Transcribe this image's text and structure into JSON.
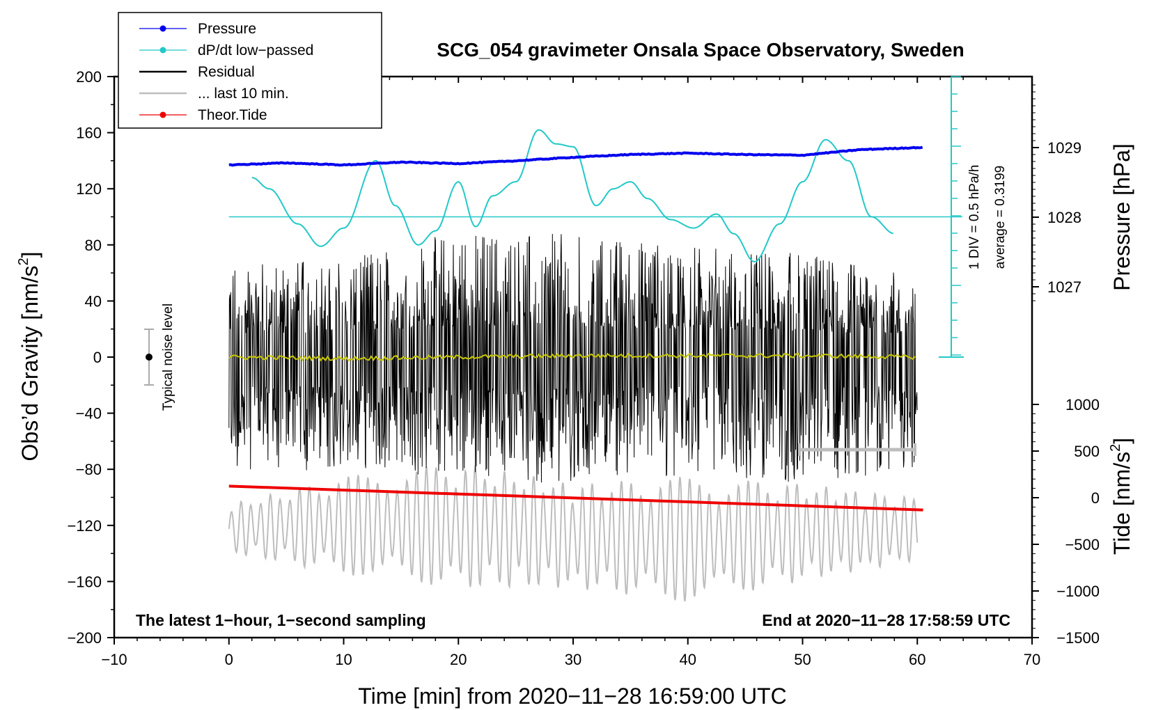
{
  "chart_data": {
    "type": "line",
    "title": "SCG_054 gravimeter Onsala Space Observatory, Sweden",
    "xlabel": "Time [min] from 2020−11−28 16:59:00 UTC",
    "ylabel": "Obs’d Gravity [nm/s²]",
    "ylabel_main": "Obs’d Gravity [nm/s",
    "ylabel_sup": "2",
    "ylabel_end": "]",
    "xlim": [
      -10,
      70
    ],
    "ylim": [
      -200,
      200
    ],
    "x_ticks": [
      "−10",
      "0",
      "10",
      "20",
      "30",
      "40",
      "50",
      "60",
      "70"
    ],
    "y_ticks": [
      "200",
      "160",
      "120",
      "80",
      "40",
      "0",
      "−40",
      "−80",
      "−120",
      "−160",
      "−200"
    ],
    "right_axis_pressure": {
      "label": "Pressure [hPa]",
      "ticks": [
        "1029",
        "1028",
        "1027"
      ],
      "values": [
        1029,
        1028,
        1027
      ]
    },
    "right_axis_tide": {
      "label_main": "Tide [nm/s",
      "label_sup": "2",
      "label_end": "]",
      "ticks": [
        "1000",
        "500",
        "0",
        "−500",
        "−1000",
        "−1500"
      ],
      "values": [
        1000,
        500,
        0,
        -500,
        -1000,
        -1500
      ]
    },
    "dpdt_scale": {
      "div_label": "1 DIV = 0.5 hPa/h",
      "average_label": "average = 0.3199"
    },
    "noise_label": "Typical noise level",
    "bottom_left_note": "The latest 1−hour, 1−second sampling",
    "bottom_right_note": "End at 2020−11−28 17:58:59 UTC",
    "legend": [
      {
        "label": "Pressure",
        "color": "#0000ee",
        "marker": true
      },
      {
        "label": "dP/dt low−passed",
        "color": "#22c8c8",
        "marker": true
      },
      {
        "label": "Residual",
        "color": "#000000",
        "marker": false
      },
      {
        "label": "... last 10 min.",
        "color": "#bdbdbd",
        "marker": false
      },
      {
        "label": "Theor.Tide",
        "color": "#ee0000",
        "marker": true
      }
    ],
    "series": [
      {
        "name": "Pressure",
        "color": "#0000ee",
        "unit": "hPa",
        "x": [
          0,
          5,
          10,
          15,
          20,
          25,
          30,
          35,
          40,
          45,
          50,
          55,
          60
        ],
        "values": [
          1028.75,
          1028.78,
          1028.75,
          1028.79,
          1028.77,
          1028.81,
          1028.86,
          1028.9,
          1028.92,
          1028.9,
          1028.89,
          1028.97,
          1029.0
        ]
      },
      {
        "name": "dP/dt low−passed",
        "color": "#22c8c8",
        "unit": "gravity-axis equivalent",
        "x": [
          2,
          3.5,
          6,
          8,
          10,
          12.8,
          14.5,
          16.5,
          18,
          20,
          21.5,
          23,
          25,
          27,
          28.5,
          30,
          32,
          33.5,
          35,
          36.5,
          38.5,
          40.5,
          42.5,
          44,
          45.8,
          48,
          50,
          52,
          54,
          56,
          58
        ],
        "values": [
          128,
          120,
          95,
          79,
          92,
          140,
          108,
          80,
          90,
          125,
          93,
          115,
          125,
          162,
          152,
          150,
          108,
          120,
          125,
          113,
          98,
          92,
          102,
          88,
          68,
          95,
          125,
          155,
          140,
          100,
          88
        ]
      },
      {
        "name": "Residual",
        "color": "#000000",
        "unit": "nm/s²",
        "x": [
          0,
          10,
          20,
          30,
          40,
          50,
          60
        ],
        "envelope_max": [
          68,
          70,
          90,
          88,
          80,
          75,
          62
        ],
        "envelope_min": [
          -80,
          -82,
          -88,
          -90,
          -85,
          -90,
          -80
        ]
      },
      {
        "name": "Residual smoothed",
        "color": "#c8c800",
        "unit": "nm/s²",
        "x": [
          0,
          10,
          20,
          30,
          40,
          50,
          60
        ],
        "values": [
          0,
          -1,
          0,
          1,
          1,
          1,
          0
        ]
      },
      {
        "name": "... last 10 min.",
        "color": "#bdbdbd",
        "unit": "nm/s²",
        "x": [
          0,
          10,
          20,
          30,
          40,
          50,
          60
        ],
        "envelope_max": [
          -105,
          -85,
          -75,
          -90,
          -85,
          -90,
          -100
        ],
        "envelope_min": [
          -140,
          -155,
          -165,
          -165,
          -175,
          -160,
          -145
        ]
      },
      {
        "name": "Theor.Tide",
        "color": "#ee0000",
        "unit": "nm/s²",
        "x": [
          0,
          60.5
        ],
        "values": [
          -92,
          -109
        ]
      }
    ]
  }
}
